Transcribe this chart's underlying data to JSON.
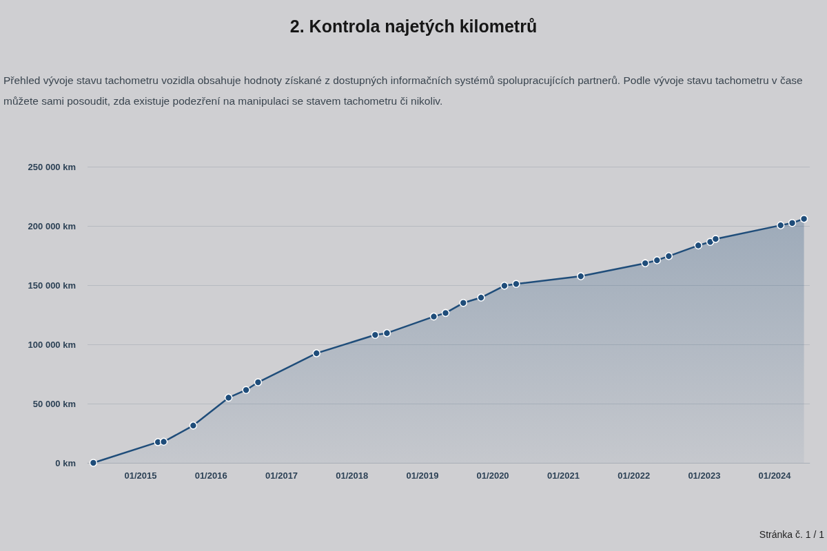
{
  "chart_data": {
    "type": "area",
    "title": "2. Kontrola najetých kilometrů",
    "subtitle": "Přehled vývoje stavu tachometru vozidla obsahuje hodnoty získané z dostupných informačních systémů spolupracujících partnerů. Podle vývoje stavu tachometru v čase můžete sami posoudit, zda existuje podezření na manipulaci se stavem tachometru či nikoliv.",
    "annotations": [
      "Stránka č. 1 / 1"
    ],
    "x": [
      "2014-05",
      "2015-04",
      "2015-05",
      "2015-10",
      "2016-04",
      "2016-07",
      "2016-09",
      "2017-07",
      "2018-05",
      "2018-07",
      "2019-03",
      "2019-05",
      "2019-08",
      "2019-11",
      "2020-03",
      "2020-05",
      "2021-04",
      "2022-03",
      "2022-05",
      "2022-07",
      "2022-12",
      "2023-02",
      "2023-03",
      "2024-02",
      "2024-04",
      "2024-06"
    ],
    "values": [
      0,
      17500,
      17800,
      31500,
      55000,
      61500,
      68000,
      92500,
      108000,
      109500,
      123500,
      126500,
      135000,
      139500,
      149500,
      151000,
      157500,
      168500,
      171000,
      174500,
      183500,
      186500,
      189000,
      200500,
      202500,
      206000
    ],
    "color": "#1f4d7a",
    "xlim": [
      "2014-04",
      "2024-07"
    ],
    "xticks": [
      {
        "value": "2015-01",
        "label": "01/2015"
      },
      {
        "value": "2016-01",
        "label": "01/2016"
      },
      {
        "value": "2017-01",
        "label": "01/2017"
      },
      {
        "value": "2018-01",
        "label": "01/2018"
      },
      {
        "value": "2019-01",
        "label": "01/2019"
      },
      {
        "value": "2020-01",
        "label": "01/2020"
      },
      {
        "value": "2021-01",
        "label": "01/2021"
      },
      {
        "value": "2022-01",
        "label": "01/2022"
      },
      {
        "value": "2023-01",
        "label": "01/2023"
      },
      {
        "value": "2024-01",
        "label": "01/2024"
      }
    ],
    "ylim": [
      0,
      250000
    ],
    "yticks": [
      {
        "value": 0,
        "label": "0 km"
      },
      {
        "value": 50000,
        "label": "50 000 km"
      },
      {
        "value": 100000,
        "label": "100 000 km"
      },
      {
        "value": 150000,
        "label": "150 000 km"
      },
      {
        "value": 200000,
        "label": "200 000 km"
      },
      {
        "value": 250000,
        "label": "250 000 km"
      }
    ],
    "grid": "y",
    "marker": "circle",
    "line_style": "solid"
  }
}
